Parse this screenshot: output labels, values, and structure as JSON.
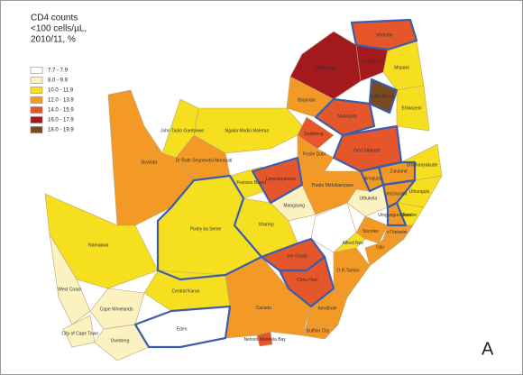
{
  "legend": {
    "title": [
      "CD4 counts",
      "<100 cells/µL,",
      "2010/11, %"
    ],
    "items": [
      {
        "label": "7.7 - 7.9",
        "color": "#ffffff"
      },
      {
        "label": "8.0 - 9.9",
        "color": "#fbf2bf"
      },
      {
        "label": "10.0 - 11.9",
        "color": "#f5df1e"
      },
      {
        "label": "12.0 - 13.9",
        "color": "#f39a26"
      },
      {
        "label": "14.0 - 15.9",
        "color": "#e5562a"
      },
      {
        "label": "16.0 - 17.9",
        "color": "#a3191d"
      },
      {
        "label": "18.0 - 19.9",
        "color": "#7a4a1e"
      }
    ]
  },
  "districts": [
    {
      "name": "Vhembe",
      "color": "#e5562a"
    },
    {
      "name": "Waterberg",
      "color": "#a3191d"
    },
    {
      "name": "Capricorn",
      "color": "#a3191d"
    },
    {
      "name": "Mopani",
      "color": "#f5df1e"
    },
    {
      "name": "Sekhukhune",
      "color": "#7a4a1e"
    },
    {
      "name": "Ehlanzeni",
      "color": "#f5df1e"
    },
    {
      "name": "Bojanala",
      "color": "#f39a26"
    },
    {
      "name": "Ngaka Modiri Molema",
      "color": "#f5df1e"
    },
    {
      "name": "Nkangala",
      "color": "#e5562a"
    },
    {
      "name": "Sedibeng",
      "color": "#e5562a"
    },
    {
      "name": "Gert Sibande",
      "color": "#e5562a"
    },
    {
      "name": "Dr Ruth Segomotsi Mompati",
      "color": "#f39a26"
    },
    {
      "name": "John Taolo Gaetsewe",
      "color": "#f5df1e"
    },
    {
      "name": "Siyanda",
      "color": "#f39a26"
    },
    {
      "name": "Frances Baard",
      "color": "#f5df1e"
    },
    {
      "name": "Lejweleputswa",
      "color": "#e5562a"
    },
    {
      "name": "Fezile Dabi",
      "color": "#f39a26"
    },
    {
      "name": "Thabo Mofutsanyane",
      "color": "#f39a26"
    },
    {
      "name": "Mangaung",
      "color": "#fbf2bf"
    },
    {
      "name": "Xhariep",
      "color": "#f5df1e"
    },
    {
      "name": "Namakwa",
      "color": "#f5df1e"
    },
    {
      "name": "Pixley ka Seme",
      "color": "#f5df1e"
    },
    {
      "name": "West Coast",
      "color": "#fbf2bf"
    },
    {
      "name": "Cape Winelands",
      "color": "#fbf2bf"
    },
    {
      "name": "City of Cape Town",
      "color": "#fbf2bf"
    },
    {
      "name": "Overberg",
      "color": "#fbf2bf"
    },
    {
      "name": "Central Karoo",
      "color": "#f5df1e"
    },
    {
      "name": "Eden",
      "color": "#ffffff"
    },
    {
      "name": "Cacadu",
      "color": "#f39a26"
    },
    {
      "name": "Nelson Mandela Bay",
      "color": "#e5562a"
    },
    {
      "name": "Joe Gqabi",
      "color": "#e5562a"
    },
    {
      "name": "Chris Hani",
      "color": "#e5562a"
    },
    {
      "name": "Amathole",
      "color": "#f39a26"
    },
    {
      "name": "Buffalo City",
      "color": "#f39a26"
    },
    {
      "name": "O.R.Tambo",
      "color": "#f39a26"
    },
    {
      "name": "Alfred Nzo",
      "color": "#f5df1e"
    },
    {
      "name": "Amajuba",
      "color": "#f39a26"
    },
    {
      "name": "Uthukela",
      "color": "#fbf2bf"
    },
    {
      "name": "Zululand",
      "color": "#f39a26"
    },
    {
      "name": "Umkhanyakude",
      "color": "#f5df1e"
    },
    {
      "name": "Uthungulu",
      "color": "#f5df1e"
    },
    {
      "name": "Umzinyathi",
      "color": "#f39a26"
    },
    {
      "name": "Sisonke",
      "color": "#f39a26"
    },
    {
      "name": "Umgungundlovu",
      "color": "#f39a26"
    },
    {
      "name": "Ilembe",
      "color": "#f5df1e"
    },
    {
      "name": "eThekwini",
      "color": "#f39a26"
    },
    {
      "name": "Ugu",
      "color": "#f39a26"
    }
  ],
  "panel_label": "A"
}
